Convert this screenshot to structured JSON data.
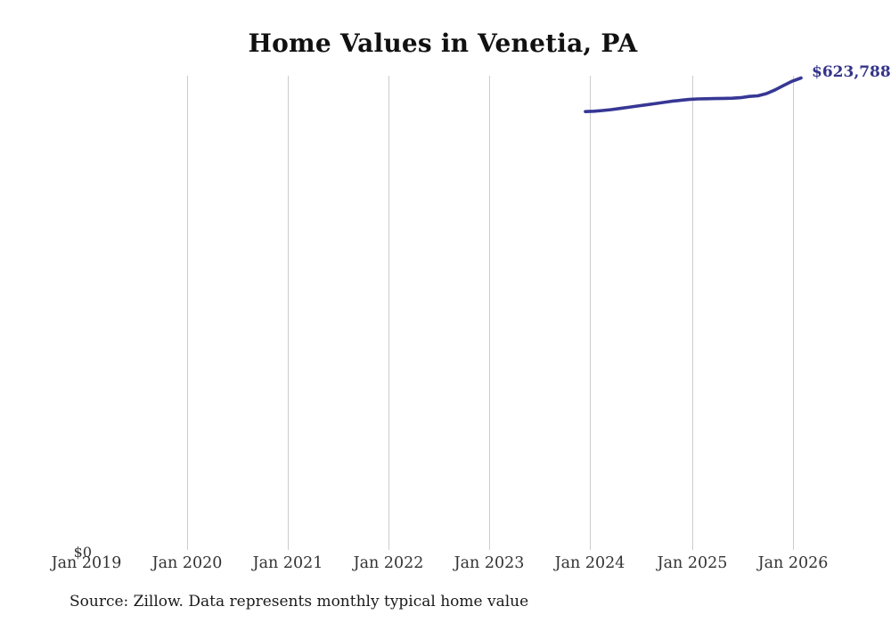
{
  "chart_data": {
    "type": "line",
    "title": "Home Values in Venetia, PA",
    "source": "Source: Zillow. Data represents monthly typical home value",
    "y_zero_label": "$0",
    "end_label": "$623,788",
    "line_color": "#373795",
    "end_label_color": "#343489",
    "gridline_color": "#cccccc",
    "axis_label_color": "#333333",
    "legend_position": "none",
    "grid": "vertical-only",
    "ylim": [
      0,
      650000
    ],
    "x_ticks": [
      {
        "label": "Jan 2019",
        "gridline": false
      },
      {
        "label": "Jan 2020",
        "gridline": true
      },
      {
        "label": "Jan 2021",
        "gridline": true
      },
      {
        "label": "Jan 2022",
        "gridline": true
      },
      {
        "label": "Jan 2023",
        "gridline": true
      },
      {
        "label": "Jan 2024",
        "gridline": true
      },
      {
        "label": "Jan 2025",
        "gridline": true
      },
      {
        "label": "Jan 2026",
        "gridline": true
      }
    ],
    "series": [
      {
        "name": "Monthly typical home value",
        "points": [
          {
            "date": "2024-01",
            "value": 579500
          },
          {
            "date": "2024-02",
            "value": 580000
          },
          {
            "date": "2024-03",
            "value": 580900
          },
          {
            "date": "2024-04",
            "value": 582100
          },
          {
            "date": "2024-05",
            "value": 583600
          },
          {
            "date": "2024-06",
            "value": 585200
          },
          {
            "date": "2024-07",
            "value": 586800
          },
          {
            "date": "2024-08",
            "value": 588400
          },
          {
            "date": "2024-09",
            "value": 589900
          },
          {
            "date": "2024-10",
            "value": 591500
          },
          {
            "date": "2024-11",
            "value": 593100
          },
          {
            "date": "2024-12",
            "value": 594300
          },
          {
            "date": "2025-01",
            "value": 595500
          },
          {
            "date": "2025-02",
            "value": 596200
          },
          {
            "date": "2025-03",
            "value": 596400
          },
          {
            "date": "2025-04",
            "value": 596700
          },
          {
            "date": "2025-05",
            "value": 596900
          },
          {
            "date": "2025-06",
            "value": 597200
          },
          {
            "date": "2025-07",
            "value": 597900
          },
          {
            "date": "2025-08",
            "value": 599500
          },
          {
            "date": "2025-09",
            "value": 600300
          },
          {
            "date": "2025-10",
            "value": 603200
          },
          {
            "date": "2025-11",
            "value": 608200
          },
          {
            "date": "2025-12",
            "value": 614000
          },
          {
            "date": "2026-01",
            "value": 619700
          },
          {
            "date": "2026-02",
            "value": 623788
          }
        ]
      }
    ]
  }
}
